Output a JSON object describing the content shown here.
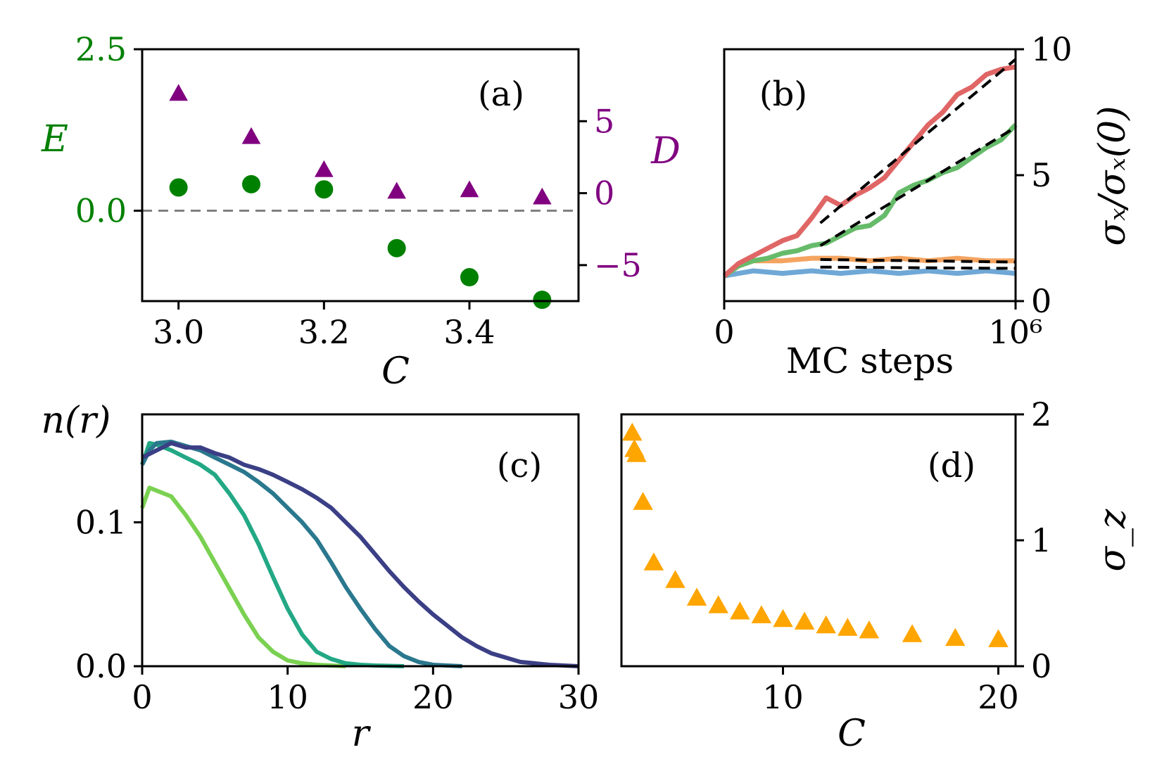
{
  "figure": {
    "background": "#ffffff"
  },
  "chart_data": [
    {
      "id": "a",
      "type": "scatter",
      "panel_label": "(a)",
      "xlabel": "C",
      "ylabel_left": "E",
      "ylabel_right": "D",
      "xlim": [
        2.95,
        3.55
      ],
      "ylim_left": [
        -1.4,
        2.5
      ],
      "ylim_right": [
        -7.5,
        10
      ],
      "x_ticks": [
        3.0,
        3.2,
        3.4
      ],
      "x_tick_labels": [
        "3.0",
        "3.2",
        "3.4"
      ],
      "y_ticks_left": [
        0.0,
        2.5
      ],
      "y_tick_labels_left": [
        "0.0",
        "2.5"
      ],
      "y_ticks_right": [
        -5,
        0,
        5
      ],
      "y_tick_labels_right": [
        "−5",
        "0",
        "5"
      ],
      "left_color": "#008000",
      "right_color": "#800080",
      "zero_line_color": "#808080",
      "series": [
        {
          "name": "E",
          "axis": "left",
          "marker": "circle",
          "color": "#008000",
          "x": [
            3.0,
            3.1,
            3.2,
            3.3,
            3.4,
            3.5
          ],
          "y": [
            0.36,
            0.41,
            0.33,
            -0.58,
            -1.03,
            -1.38
          ]
        },
        {
          "name": "D",
          "axis": "right",
          "marker": "triangle",
          "color": "#800080",
          "x": [
            3.0,
            3.1,
            3.2,
            3.3,
            3.4,
            3.5
          ],
          "y": [
            6.9,
            3.9,
            1.6,
            0.1,
            0.2,
            -0.3
          ]
        }
      ]
    },
    {
      "id": "b",
      "type": "line",
      "panel_label": "(b)",
      "xlabel": "MC steps",
      "ylabel": "σₓ/σₓ(0)",
      "x_ticks": [
        0,
        1
      ],
      "x_tick_labels": [
        "0",
        "10⁶"
      ],
      "y_ticks": [
        0,
        5,
        10
      ],
      "y_tick_labels": [
        "0",
        "5",
        "10"
      ],
      "xlim": [
        0,
        1
      ],
      "ylim": [
        0,
        10
      ],
      "series": [
        {
          "name": "red",
          "color": "#e06666",
          "x": [
            0,
            0.05,
            0.1,
            0.15,
            0.2,
            0.25,
            0.3,
            0.35,
            0.4,
            0.45,
            0.5,
            0.55,
            0.6,
            0.65,
            0.7,
            0.75,
            0.8,
            0.85,
            0.9,
            0.95,
            1.0
          ],
          "y": [
            1.0,
            1.5,
            1.8,
            2.1,
            2.4,
            2.6,
            3.3,
            4.1,
            3.8,
            4.2,
            4.5,
            4.9,
            5.6,
            6.3,
            7.0,
            7.5,
            8.2,
            8.5,
            9.0,
            9.2,
            9.3
          ]
        },
        {
          "name": "green",
          "color": "#66bb6a",
          "x": [
            0,
            0.05,
            0.1,
            0.15,
            0.2,
            0.25,
            0.3,
            0.35,
            0.4,
            0.45,
            0.5,
            0.55,
            0.6,
            0.65,
            0.7,
            0.75,
            0.8,
            0.85,
            0.9,
            0.95,
            1.0
          ],
          "y": [
            1.0,
            1.4,
            1.6,
            1.7,
            1.9,
            2.0,
            2.2,
            2.3,
            2.6,
            2.9,
            3.0,
            3.4,
            4.3,
            4.6,
            4.8,
            5.1,
            5.3,
            5.7,
            6.1,
            6.4,
            7.0
          ]
        },
        {
          "name": "orange",
          "color": "#f4a460",
          "x": [
            0,
            0.05,
            0.1,
            0.2,
            0.3,
            0.4,
            0.5,
            0.6,
            0.7,
            0.8,
            0.9,
            1.0
          ],
          "y": [
            1.0,
            1.4,
            1.6,
            1.6,
            1.7,
            1.7,
            1.6,
            1.7,
            1.6,
            1.7,
            1.6,
            1.6
          ]
        },
        {
          "name": "blue",
          "color": "#6fa8d6",
          "x": [
            0,
            0.05,
            0.1,
            0.2,
            0.3,
            0.4,
            0.5,
            0.6,
            0.7,
            0.8,
            0.9,
            1.0
          ],
          "y": [
            1.0,
            1.1,
            1.2,
            1.1,
            1.2,
            1.1,
            1.2,
            1.1,
            1.2,
            1.1,
            1.2,
            1.1
          ]
        }
      ],
      "fits": [
        {
          "x": [
            0.33,
            1.0
          ],
          "y": [
            3.1,
            9.6
          ]
        },
        {
          "x": [
            0.33,
            1.0
          ],
          "y": [
            2.2,
            6.9
          ]
        },
        {
          "x": [
            0.33,
            1.0
          ],
          "y": [
            1.65,
            1.55
          ]
        },
        {
          "x": [
            0.33,
            1.0
          ],
          "y": [
            1.35,
            1.3
          ]
        }
      ],
      "fit_color": "#000000"
    },
    {
      "id": "c",
      "type": "line",
      "panel_label": "(c)",
      "xlabel": "r",
      "ylabel": "n(r)",
      "xlim": [
        0,
        30
      ],
      "ylim": [
        0,
        0.175
      ],
      "x_ticks": [
        0,
        10,
        20,
        30
      ],
      "x_tick_labels": [
        "0",
        "10",
        "20",
        "30"
      ],
      "y_ticks": [
        0.0,
        0.1
      ],
      "y_tick_labels": [
        "0.0",
        "0.1"
      ],
      "series": [
        {
          "name": "c1",
          "color": "#7ad151",
          "x": [
            0,
            0.5,
            1,
            2,
            3,
            4,
            5,
            6,
            7,
            8,
            9,
            10,
            11,
            12,
            13,
            14
          ],
          "y": [
            0.11,
            0.124,
            0.122,
            0.118,
            0.105,
            0.09,
            0.072,
            0.054,
            0.036,
            0.02,
            0.01,
            0.004,
            0.002,
            0.001,
            0.0005,
            0
          ]
        },
        {
          "name": "c2",
          "color": "#22a884",
          "x": [
            0,
            0.5,
            1,
            2,
            3,
            4,
            5,
            6,
            7,
            8,
            9,
            10,
            11,
            12,
            13,
            14,
            15,
            16,
            18
          ],
          "y": [
            0.14,
            0.155,
            0.154,
            0.15,
            0.145,
            0.14,
            0.133,
            0.12,
            0.105,
            0.085,
            0.062,
            0.04,
            0.022,
            0.01,
            0.005,
            0.002,
            0.001,
            0.0005,
            0
          ]
        },
        {
          "name": "c3",
          "color": "#2a788e",
          "x": [
            0,
            0.5,
            1,
            2,
            3,
            4,
            5,
            6,
            7,
            8,
            9,
            10,
            11,
            12,
            13,
            14,
            15,
            16,
            17,
            18,
            19,
            20,
            22
          ],
          "y": [
            0.14,
            0.15,
            0.155,
            0.156,
            0.153,
            0.15,
            0.145,
            0.14,
            0.135,
            0.128,
            0.12,
            0.11,
            0.1,
            0.088,
            0.072,
            0.055,
            0.04,
            0.026,
            0.014,
            0.007,
            0.003,
            0.001,
            0
          ]
        },
        {
          "name": "c4",
          "color": "#3b3f85",
          "x": [
            0,
            1,
            2,
            3,
            4,
            5,
            6,
            7,
            8,
            9,
            10,
            11,
            12,
            13,
            14,
            15,
            16,
            17,
            18,
            19,
            20,
            21,
            22,
            23,
            24,
            25,
            26,
            27,
            28,
            29,
            30
          ],
          "y": [
            0.145,
            0.15,
            0.155,
            0.152,
            0.152,
            0.148,
            0.145,
            0.14,
            0.137,
            0.133,
            0.128,
            0.123,
            0.117,
            0.11,
            0.1,
            0.09,
            0.078,
            0.066,
            0.055,
            0.045,
            0.036,
            0.028,
            0.02,
            0.014,
            0.009,
            0.006,
            0.003,
            0.002,
            0.001,
            0.0005,
            0
          ]
        }
      ]
    },
    {
      "id": "d",
      "type": "scatter",
      "panel_label": "(d)",
      "xlabel": "C",
      "ylabel": "σ_z",
      "xlim": [
        2.5,
        20.8
      ],
      "ylim": [
        0,
        2.0
      ],
      "x_ticks": [
        10,
        20
      ],
      "x_tick_labels": [
        "10",
        "20"
      ],
      "y_ticks": [
        0,
        1,
        2
      ],
      "y_tick_labels": [
        "0",
        "1",
        "2"
      ],
      "color": "#ffa500",
      "marker": "triangle",
      "x": [
        3.0,
        3.1,
        3.2,
        3.5,
        4,
        5,
        6,
        7,
        8,
        9,
        10,
        11,
        12,
        13,
        14,
        16,
        18,
        20
      ],
      "y": [
        1.85,
        1.72,
        1.68,
        1.3,
        0.82,
        0.68,
        0.54,
        0.48,
        0.43,
        0.4,
        0.37,
        0.35,
        0.32,
        0.3,
        0.28,
        0.25,
        0.22,
        0.21
      ]
    }
  ]
}
